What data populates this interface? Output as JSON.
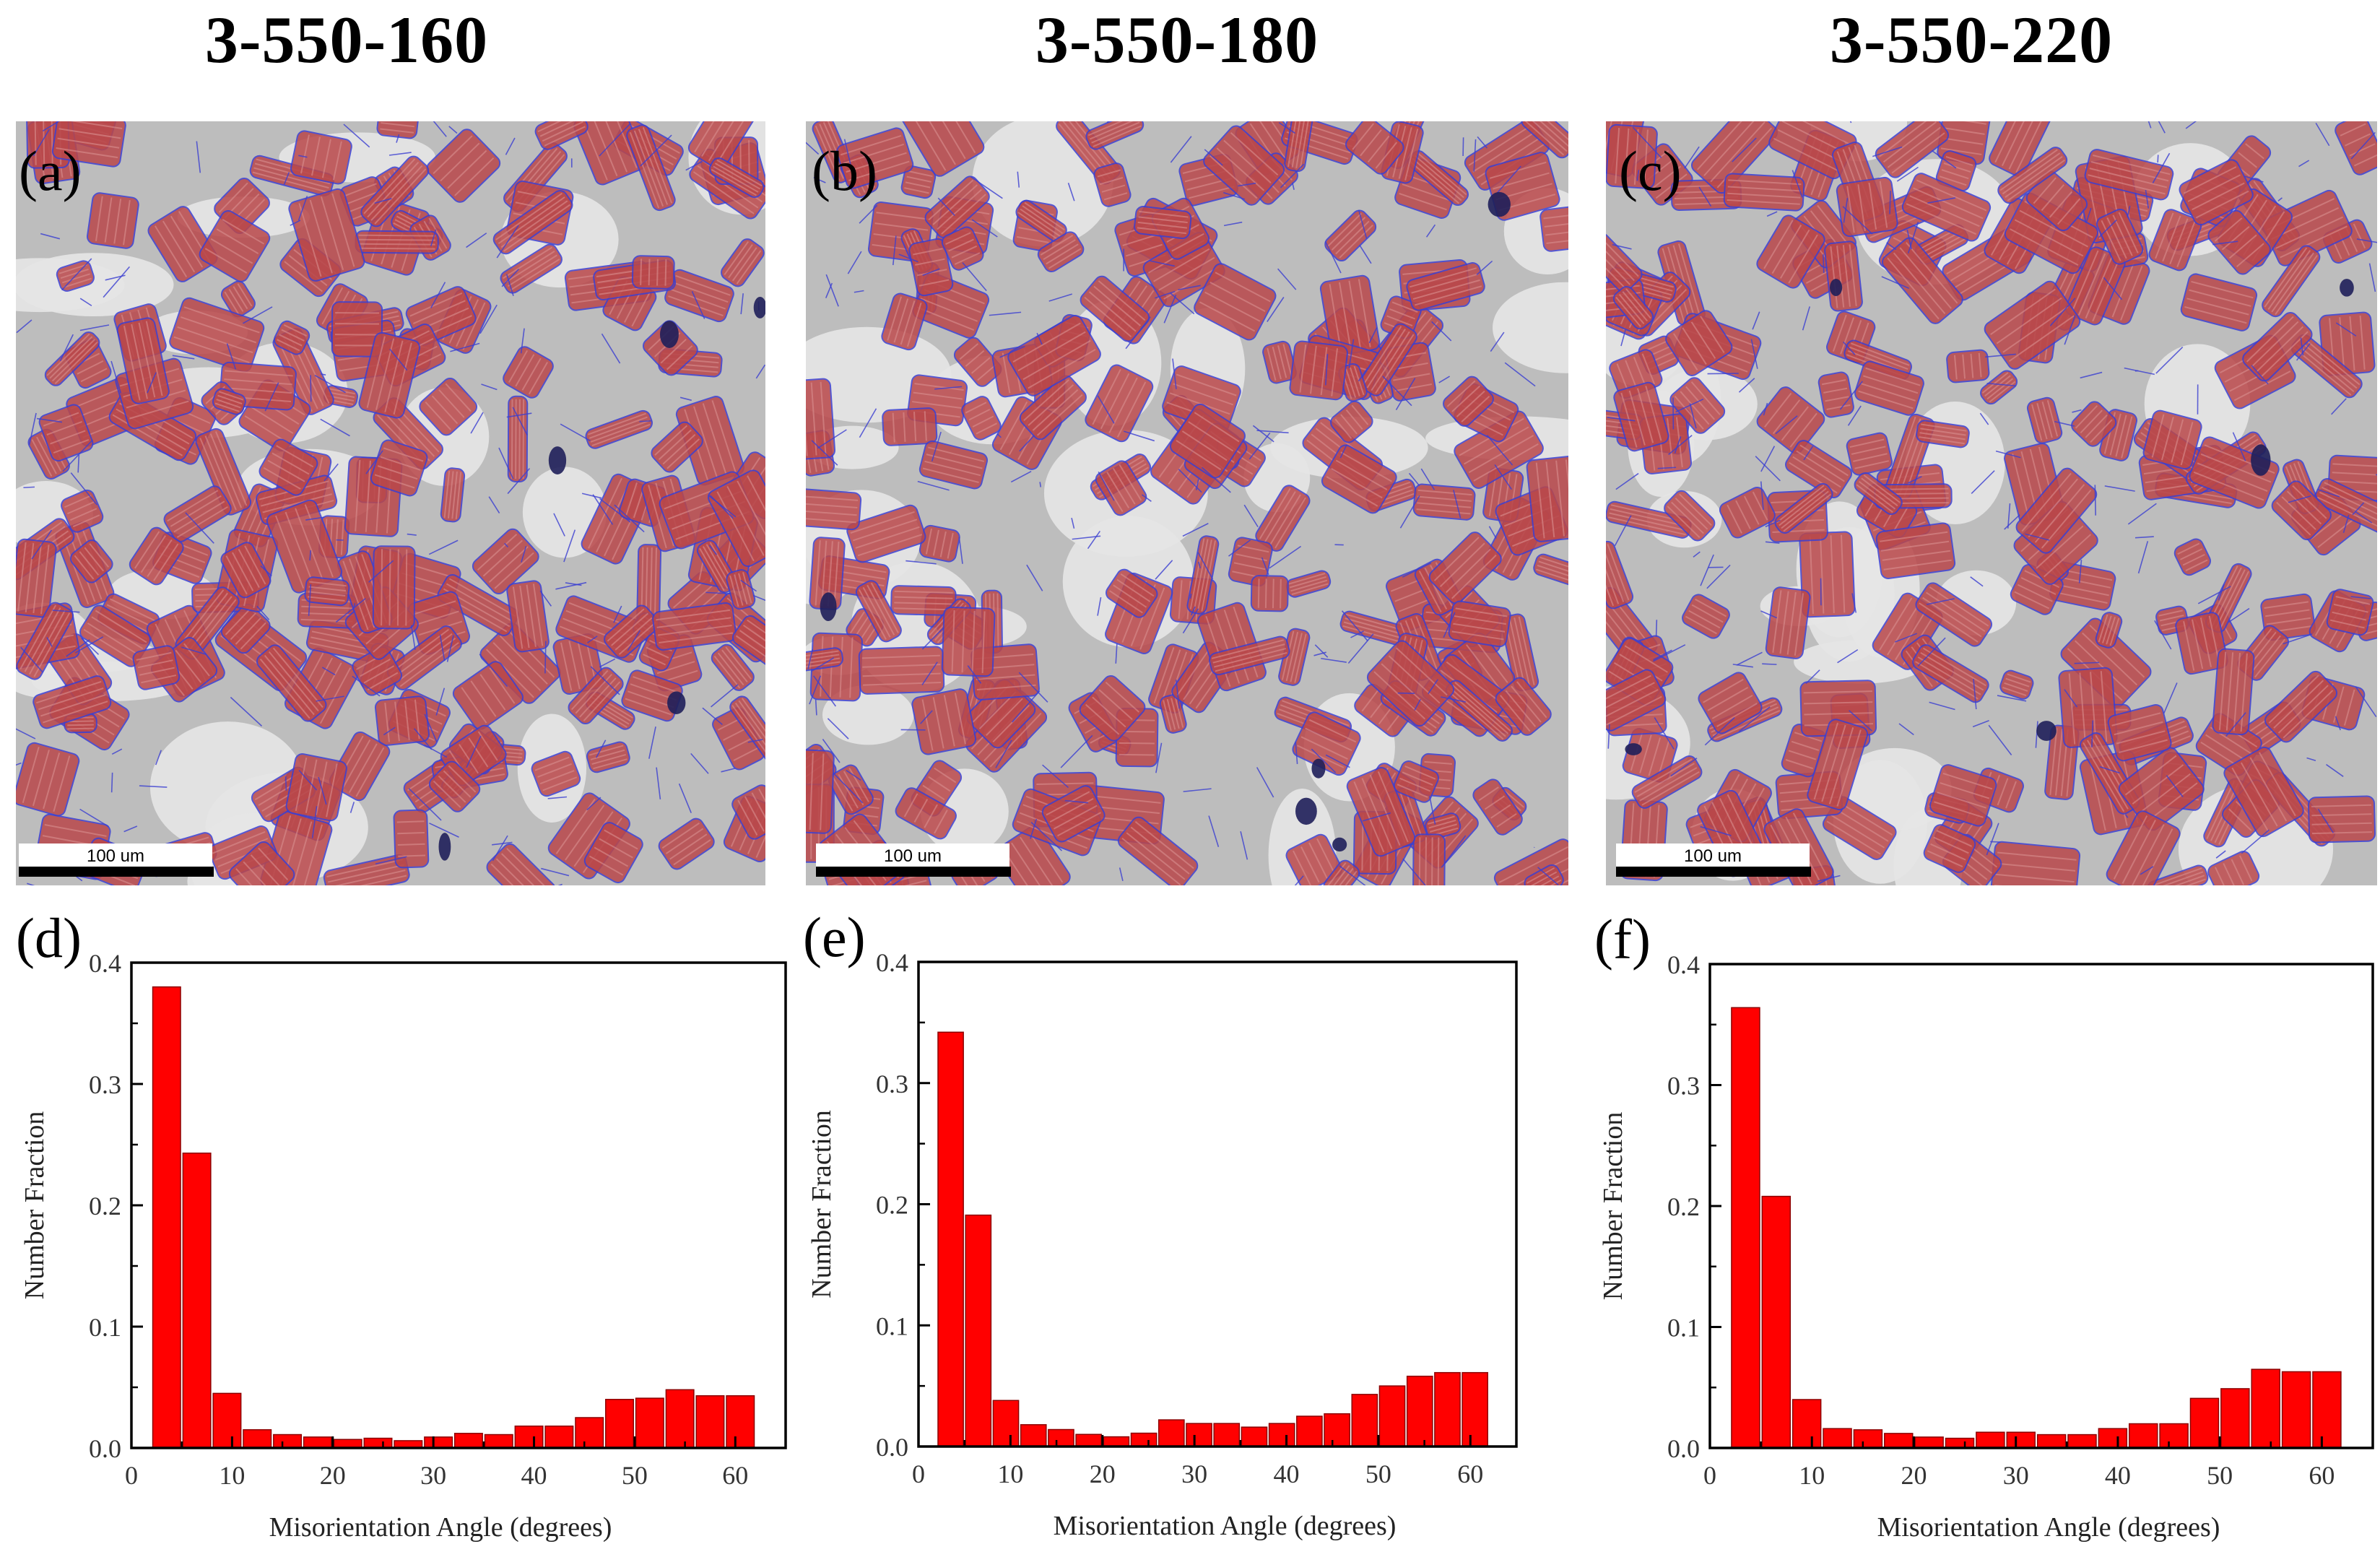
{
  "figure": {
    "columns": [
      {
        "title": "3-550-160"
      },
      {
        "title": "3-550-180"
      },
      {
        "title": "3-550-220"
      }
    ],
    "micrographs": [
      {
        "label": "(a)",
        "scale_bar": "100 um"
      },
      {
        "label": "(b)",
        "scale_bar": "100 um"
      },
      {
        "label": "(c)",
        "scale_bar": "100 um"
      }
    ],
    "colors": {
      "bar_fill": "#ff0000",
      "bar_stroke": "#8b0000",
      "grain_red": "#b9474a",
      "boundary_blue": "#3b3fd1",
      "matrix_gray": "#bdbdbd"
    }
  },
  "chart_data": [
    {
      "type": "bar",
      "label": "(d)",
      "xlabel": "Misorientation Angle (degrees)",
      "ylabel": "Number Fraction",
      "xlim": [
        0,
        65
      ],
      "ylim": [
        0,
        0.4
      ],
      "xticks": [
        "0",
        "10",
        "20",
        "30",
        "40",
        "50",
        "60"
      ],
      "yticks": [
        "0.0",
        "0.1",
        "0.2",
        "0.3",
        "0.4"
      ],
      "x": [
        3.5,
        6.5,
        9.5,
        12.5,
        15.5,
        18.5,
        21.5,
        24.5,
        27.5,
        30.5,
        33.5,
        36.5,
        39.5,
        42.5,
        45.5,
        48.5,
        51.5,
        54.5,
        57.5,
        60.5
      ],
      "values": [
        0.38,
        0.243,
        0.045,
        0.015,
        0.011,
        0.009,
        0.007,
        0.008,
        0.006,
        0.009,
        0.012,
        0.011,
        0.018,
        0.018,
        0.025,
        0.04,
        0.041,
        0.048,
        0.043,
        0.043
      ]
    },
    {
      "type": "bar",
      "label": "(e)",
      "xlabel": "Misorientation Angle (degrees)",
      "ylabel": "Number Fraction",
      "xlim": [
        0,
        65
      ],
      "ylim": [
        0,
        0.4
      ],
      "xticks": [
        "0",
        "10",
        "20",
        "30",
        "40",
        "50",
        "60"
      ],
      "yticks": [
        "0.0",
        "0.1",
        "0.2",
        "0.3",
        "0.4"
      ],
      "x": [
        3.5,
        6.5,
        9.5,
        12.5,
        15.5,
        18.5,
        21.5,
        24.5,
        27.5,
        30.5,
        33.5,
        36.5,
        39.5,
        42.5,
        45.5,
        48.5,
        51.5,
        54.5,
        57.5,
        60.5
      ],
      "values": [
        0.342,
        0.191,
        0.038,
        0.018,
        0.014,
        0.01,
        0.008,
        0.011,
        0.022,
        0.019,
        0.019,
        0.016,
        0.019,
        0.025,
        0.027,
        0.043,
        0.05,
        0.058,
        0.061,
        0.061
      ]
    },
    {
      "type": "bar",
      "label": "(f)",
      "xlabel": "Misorientation Angle (degrees)",
      "ylabel": "Number Fraction",
      "xlim": [
        0,
        65
      ],
      "ylim": [
        0,
        0.4
      ],
      "xticks": [
        "0",
        "10",
        "20",
        "30",
        "40",
        "50",
        "60"
      ],
      "yticks": [
        "0.0",
        "0.1",
        "0.2",
        "0.3",
        "0.4"
      ],
      "x": [
        3.5,
        6.5,
        9.5,
        12.5,
        15.5,
        18.5,
        21.5,
        24.5,
        27.5,
        30.5,
        33.5,
        36.5,
        39.5,
        42.5,
        45.5,
        48.5,
        51.5,
        54.5,
        57.5,
        60.5
      ],
      "values": [
        0.364,
        0.208,
        0.04,
        0.016,
        0.015,
        0.012,
        0.009,
        0.008,
        0.013,
        0.013,
        0.011,
        0.011,
        0.016,
        0.02,
        0.02,
        0.041,
        0.049,
        0.065,
        0.063,
        0.063
      ]
    }
  ]
}
